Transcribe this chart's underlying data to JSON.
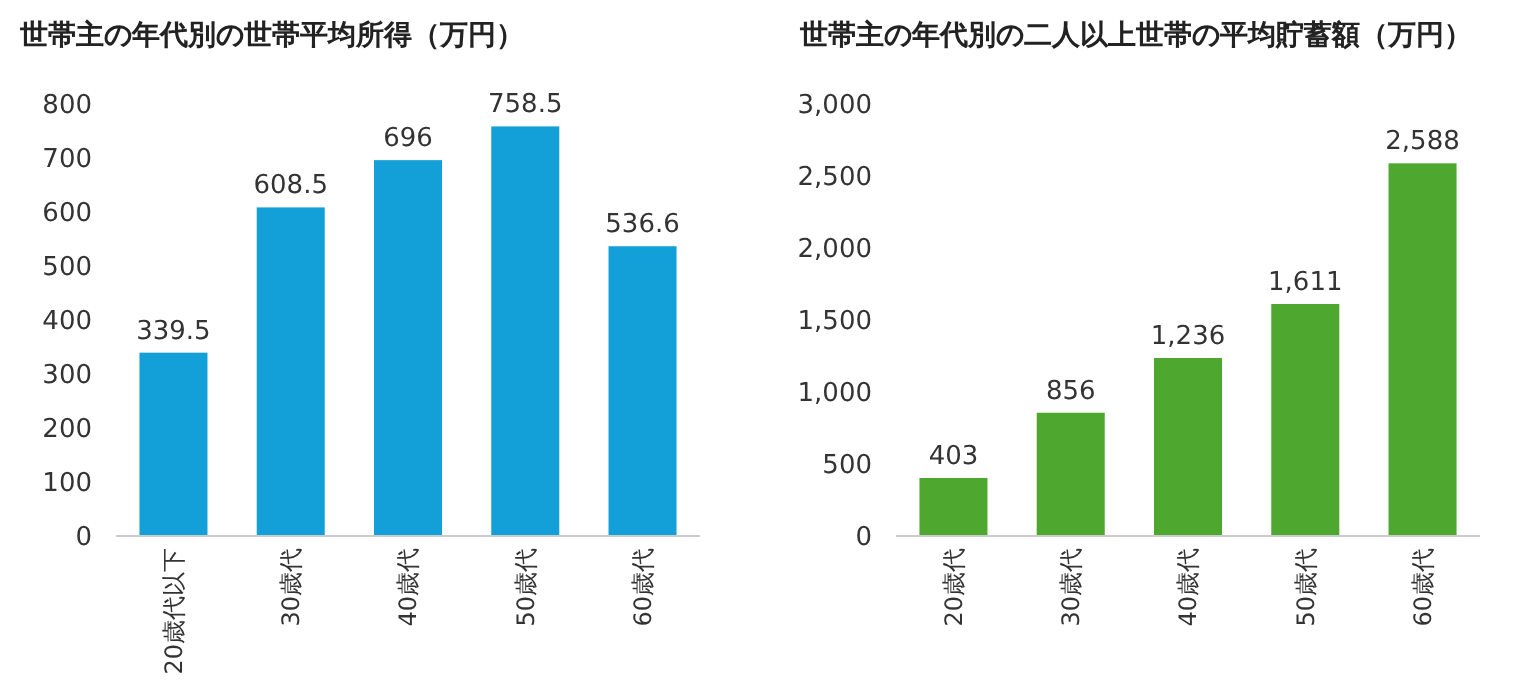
{
  "chart_data": [
    {
      "type": "bar",
      "title": "世帯主の年代別の世帯平均所得（万円）",
      "categories": [
        "20歳代以下",
        "30歳代",
        "40歳代",
        "50歳代",
        "60歳代"
      ],
      "values": [
        339.5,
        608.5,
        696,
        758.5,
        536.6
      ],
      "color": "#139fd8",
      "ylim": [
        0,
        800
      ],
      "yticks": [
        0,
        100,
        200,
        300,
        400,
        500,
        600,
        700,
        800
      ],
      "data_labels": true
    },
    {
      "type": "bar",
      "title": "世帯主の年代別の二人以上世帯の平均貯蓄額（万円）",
      "categories": [
        "20歳代",
        "30歳代",
        "40歳代",
        "50歳代",
        "60歳代"
      ],
      "values": [
        403,
        856,
        1236,
        1611,
        2588
      ],
      "value_labels": [
        "403",
        "856",
        "1,236",
        "1,611",
        "2,588"
      ],
      "color": "#4ea72e",
      "ylim": [
        0,
        3000
      ],
      "yticks": [
        0,
        500,
        {
          "value": 1000,
          "label": "1,000"
        },
        {
          "value": 1500,
          "label": "1,500"
        },
        {
          "value": 2000,
          "label": "2,000"
        },
        {
          "value": 2500,
          "label": "2,500"
        },
        {
          "value": 3000,
          "label": "3,000"
        }
      ]
    }
  ]
}
